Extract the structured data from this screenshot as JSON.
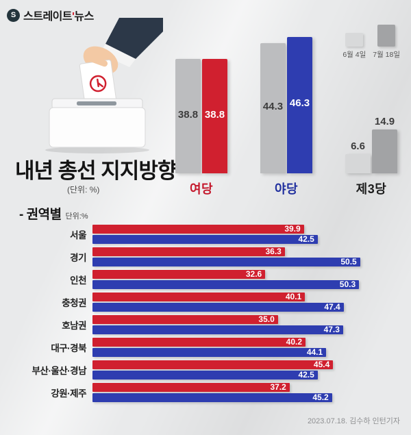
{
  "logo": {
    "brand_1": "스트레이트",
    "accent": "'",
    "brand_2": "뉴스",
    "mark": "S"
  },
  "title": {
    "main": "내년 총선 지지방향",
    "unit": "(단위: %)"
  },
  "legend": {
    "items": [
      {
        "label": "6월 4일",
        "color": "#d8d9da"
      },
      {
        "label": "7월 18일",
        "color": "#a2a3a5"
      }
    ]
  },
  "section_region": {
    "title": "- 권역별",
    "unit": "단위:%"
  },
  "meta": {
    "credit": "2023.07.18. 김수하 인턴기자"
  },
  "chart_data": [
    {
      "type": "bar",
      "title": "내년 총선 지지방향",
      "unit": "%",
      "legend": [
        "6월 4일",
        "7월 18일"
      ],
      "ylim": [
        0,
        50
      ],
      "groups": [
        {
          "category": "여당",
          "category_color": "#c4172b",
          "values": [
            "38.8",
            "38.8"
          ],
          "colors": [
            "#bcbdbf",
            "#d0202f"
          ],
          "value_colors": [
            "#3c3c3c",
            "#ffffff"
          ],
          "labels_outside": false
        },
        {
          "category": "야당",
          "category_color": "#202f9e",
          "values": [
            "44.3",
            "46.3"
          ],
          "colors": [
            "#bcbdbf",
            "#2e3db0"
          ],
          "value_colors": [
            "#3c3c3c",
            "#ffffff"
          ],
          "labels_outside": false
        },
        {
          "category": "제3당",
          "category_color": "#1d1d1d",
          "values": [
            "6.6",
            "14.9"
          ],
          "colors": [
            "#d6d7d8",
            "#a2a3a5"
          ],
          "value_colors": [
            "#3c3c3c",
            "#3c3c3c"
          ],
          "labels_outside": true
        }
      ]
    },
    {
      "type": "bar-horizontal",
      "title": "권역별",
      "unit": "단위:%",
      "xlim": [
        0,
        57
      ],
      "categories": [
        "서울",
        "경기",
        "인천",
        "충청권",
        "호남권",
        "대구·경북",
        "부산·울산·경남",
        "강원·제주"
      ],
      "series": [
        {
          "name": "여당",
          "color": "#d0202f",
          "values": [
            "39.9",
            "36.3",
            "32.6",
            "40.1",
            "35.0",
            "40.2",
            "45.4",
            "37.2"
          ]
        },
        {
          "name": "야당",
          "color": "#2e3db0",
          "values": [
            "42.5",
            "50.5",
            "50.3",
            "47.4",
            "47.3",
            "44.1",
            "42.5",
            "45.2"
          ]
        }
      ]
    }
  ]
}
